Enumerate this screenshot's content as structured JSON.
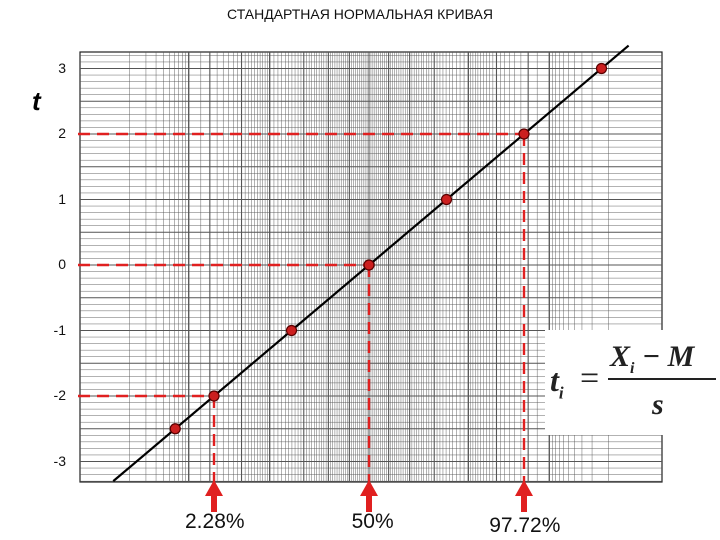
{
  "chart_data": {
    "type": "line",
    "title": "СТАНДАРТНАЯ НОРМАЛЬНАЯ КРИВАЯ",
    "ylabel": "t",
    "ylim": [
      -3,
      3
    ],
    "yticks": [
      "3",
      "2",
      "1",
      "0",
      "-1",
      "-2",
      "-3"
    ],
    "x_scale": "normal probability",
    "grid": true,
    "series": [
      {
        "points": [
          {
            "t": -2.5
          },
          {
            "t": -2
          },
          {
            "t": -1
          },
          {
            "t": 0
          },
          {
            "t": 1
          },
          {
            "t": 2
          },
          {
            "t": 3
          }
        ]
      }
    ],
    "annotations": [
      {
        "label": "2.28%",
        "t": -2
      },
      {
        "label": "50%",
        "t": 0
      },
      {
        "label": "97.72%",
        "t": 2
      }
    ],
    "formula": {
      "lhs": "t",
      "lhs_sub": "i",
      "eq": "=",
      "num": "X",
      "num_sub": "i",
      "num_rest": " − M",
      "den": "s"
    },
    "colors": {
      "line": "#000000",
      "point": "#cc1f1f",
      "guide": "#e02020",
      "arrow": "#e02020",
      "grid": "#555555"
    }
  }
}
